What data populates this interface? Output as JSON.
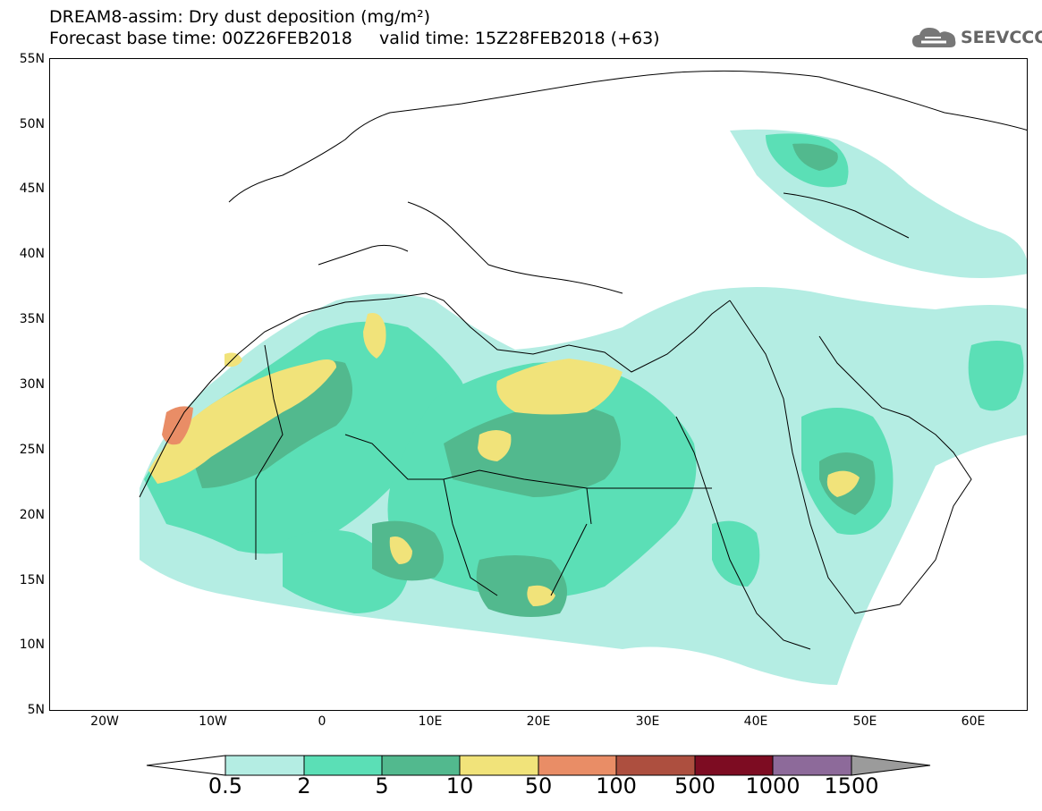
{
  "title": {
    "line1": "DREAM8-assim: Dry dust deposition (mg/m²)",
    "line2": "Forecast base time: 00Z26FEB2018     valid time: 15Z28FEB2018 (+63)"
  },
  "logo": {
    "text": "SEEVCCC",
    "icon": "cloud-icon"
  },
  "map": {
    "lat_labels": [
      "55N",
      "50N",
      "45N",
      "40N",
      "35N",
      "30N",
      "25N",
      "20N",
      "15N",
      "10N",
      "5N"
    ],
    "lon_labels": [
      "20W",
      "10W",
      "0",
      "10E",
      "20E",
      "30E",
      "40E",
      "50E",
      "60E"
    ],
    "lon_range": [
      -25,
      65
    ],
    "lat_range": [
      5,
      55
    ]
  },
  "colorbar": {
    "labels": [
      "0.5",
      "2",
      "5",
      "10",
      "50",
      "100",
      "500",
      "1000",
      "1500"
    ],
    "colors": [
      "#b4ede3",
      "#5bdfb6",
      "#52b98e",
      "#f1e37a",
      "#e98d66",
      "#ad4f3f",
      "#7d0c22",
      "#8d6a9a",
      "#9b9b9b"
    ],
    "under_color": "#ffffff"
  }
}
